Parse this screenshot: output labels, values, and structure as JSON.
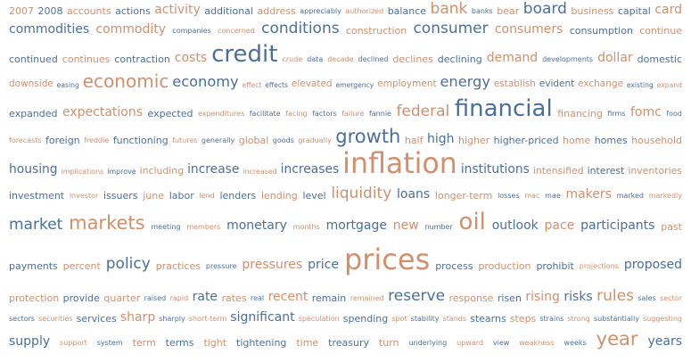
{
  "colors": {
    "blue": "#4a6f9d",
    "orange": "#d18f6c",
    "background": "#ffffff"
  },
  "words": [
    {
      "text": "2007",
      "weight": 2,
      "tone": "orange"
    },
    {
      "text": "2008",
      "weight": 2,
      "tone": "blue"
    },
    {
      "text": "accounts",
      "weight": 2,
      "tone": "orange"
    },
    {
      "text": "actions",
      "weight": 2,
      "tone": "blue"
    },
    {
      "text": "activity",
      "weight": 3,
      "tone": "orange"
    },
    {
      "text": "additional",
      "weight": 2,
      "tone": "blue"
    },
    {
      "text": "address",
      "weight": 2,
      "tone": "orange"
    },
    {
      "text": "appreciably",
      "weight": 1,
      "tone": "blue"
    },
    {
      "text": "authorized",
      "weight": 1,
      "tone": "orange"
    },
    {
      "text": "balance",
      "weight": 2,
      "tone": "blue"
    },
    {
      "text": "bank",
      "weight": 4,
      "tone": "orange"
    },
    {
      "text": "banks",
      "weight": 1,
      "tone": "blue"
    },
    {
      "text": "bear",
      "weight": 2,
      "tone": "orange"
    },
    {
      "text": "board",
      "weight": 4,
      "tone": "blue"
    },
    {
      "text": "business",
      "weight": 2,
      "tone": "orange"
    },
    {
      "text": "capital",
      "weight": 2,
      "tone": "blue"
    },
    {
      "text": "card",
      "weight": 3,
      "tone": "orange"
    },
    {
      "text": "commodities",
      "weight": 3,
      "tone": "blue"
    },
    {
      "text": "commodity",
      "weight": 3,
      "tone": "orange"
    },
    {
      "text": "companies",
      "weight": 1,
      "tone": "blue"
    },
    {
      "text": "concerned",
      "weight": 1,
      "tone": "orange"
    },
    {
      "text": "conditions",
      "weight": 4,
      "tone": "blue"
    },
    {
      "text": "construction",
      "weight": 2,
      "tone": "orange"
    },
    {
      "text": "consumer",
      "weight": 4,
      "tone": "blue"
    },
    {
      "text": "consumers",
      "weight": 3,
      "tone": "orange"
    },
    {
      "text": "consumption",
      "weight": 2,
      "tone": "blue"
    },
    {
      "text": "continue",
      "weight": 2,
      "tone": "orange"
    },
    {
      "text": "continued",
      "weight": 2,
      "tone": "blue"
    },
    {
      "text": "continues",
      "weight": 2,
      "tone": "orange"
    },
    {
      "text": "contraction",
      "weight": 2,
      "tone": "blue"
    },
    {
      "text": "costs",
      "weight": 3,
      "tone": "orange"
    },
    {
      "text": "credit",
      "weight": 6,
      "tone": "blue"
    },
    {
      "text": "crude",
      "weight": 1,
      "tone": "orange"
    },
    {
      "text": "data",
      "weight": 1,
      "tone": "blue"
    },
    {
      "text": "decade",
      "weight": 1,
      "tone": "orange"
    },
    {
      "text": "declined",
      "weight": 1,
      "tone": "blue"
    },
    {
      "text": "declines",
      "weight": 2,
      "tone": "orange"
    },
    {
      "text": "declining",
      "weight": 2,
      "tone": "blue"
    },
    {
      "text": "demand",
      "weight": 3,
      "tone": "orange"
    },
    {
      "text": "developments",
      "weight": 1,
      "tone": "blue"
    },
    {
      "text": "dollar",
      "weight": 3,
      "tone": "orange"
    },
    {
      "text": "domestic",
      "weight": 2,
      "tone": "blue"
    },
    {
      "text": "downside",
      "weight": 2,
      "tone": "orange"
    },
    {
      "text": "easing",
      "weight": 1,
      "tone": "blue"
    },
    {
      "text": "economic",
      "weight": 5,
      "tone": "orange"
    },
    {
      "text": "economy",
      "weight": 4,
      "tone": "blue"
    },
    {
      "text": "effect",
      "weight": 1,
      "tone": "orange"
    },
    {
      "text": "effects",
      "weight": 1,
      "tone": "blue"
    },
    {
      "text": "elevated",
      "weight": 2,
      "tone": "orange"
    },
    {
      "text": "emergency",
      "weight": 1,
      "tone": "blue"
    },
    {
      "text": "employment",
      "weight": 2,
      "tone": "orange"
    },
    {
      "text": "energy",
      "weight": 4,
      "tone": "blue"
    },
    {
      "text": "establish",
      "weight": 2,
      "tone": "orange"
    },
    {
      "text": "evident",
      "weight": 2,
      "tone": "blue"
    },
    {
      "text": "exchange",
      "weight": 2,
      "tone": "orange"
    },
    {
      "text": "existing",
      "weight": 1,
      "tone": "blue"
    },
    {
      "text": "expand",
      "weight": 1,
      "tone": "orange"
    },
    {
      "text": "expanded",
      "weight": 2,
      "tone": "blue"
    },
    {
      "text": "expectations",
      "weight": 3,
      "tone": "orange"
    },
    {
      "text": "expected",
      "weight": 2,
      "tone": "blue"
    },
    {
      "text": "expenditures",
      "weight": 1,
      "tone": "orange"
    },
    {
      "text": "facilitate",
      "weight": 1,
      "tone": "blue"
    },
    {
      "text": "facing",
      "weight": 1,
      "tone": "orange"
    },
    {
      "text": "factors",
      "weight": 1,
      "tone": "blue"
    },
    {
      "text": "failure",
      "weight": 1,
      "tone": "orange"
    },
    {
      "text": "fannie",
      "weight": 1,
      "tone": "blue"
    },
    {
      "text": "federal",
      "weight": 4,
      "tone": "orange"
    },
    {
      "text": "financial",
      "weight": 6,
      "tone": "blue"
    },
    {
      "text": "financing",
      "weight": 2,
      "tone": "orange"
    },
    {
      "text": "firms",
      "weight": 1,
      "tone": "blue"
    },
    {
      "text": "fomc",
      "weight": 3,
      "tone": "orange"
    },
    {
      "text": "food",
      "weight": 1,
      "tone": "blue"
    },
    {
      "text": "forecasts",
      "weight": 1,
      "tone": "orange"
    },
    {
      "text": "foreign",
      "weight": 2,
      "tone": "blue"
    },
    {
      "text": "freddie",
      "weight": 1,
      "tone": "orange"
    },
    {
      "text": "functioning",
      "weight": 2,
      "tone": "blue"
    },
    {
      "text": "futures",
      "weight": 1,
      "tone": "orange"
    },
    {
      "text": "generally",
      "weight": 1,
      "tone": "blue"
    },
    {
      "text": "global",
      "weight": 2,
      "tone": "orange"
    },
    {
      "text": "goods",
      "weight": 1,
      "tone": "blue"
    },
    {
      "text": "gradually",
      "weight": 1,
      "tone": "orange"
    },
    {
      "text": "growth",
      "weight": 5,
      "tone": "blue"
    },
    {
      "text": "half",
      "weight": 2,
      "tone": "orange"
    },
    {
      "text": "high",
      "weight": 3,
      "tone": "blue"
    },
    {
      "text": "higher",
      "weight": 2,
      "tone": "orange"
    },
    {
      "text": "higher-priced",
      "weight": 2,
      "tone": "blue"
    },
    {
      "text": "home",
      "weight": 2,
      "tone": "orange"
    },
    {
      "text": "homes",
      "weight": 2,
      "tone": "blue"
    },
    {
      "text": "household",
      "weight": 2,
      "tone": "orange"
    },
    {
      "text": "housing",
      "weight": 3,
      "tone": "blue"
    },
    {
      "text": "implications",
      "weight": 1,
      "tone": "orange"
    },
    {
      "text": "improve",
      "weight": 1,
      "tone": "blue"
    },
    {
      "text": "including",
      "weight": 2,
      "tone": "orange"
    },
    {
      "text": "increase",
      "weight": 3,
      "tone": "blue"
    },
    {
      "text": "increased",
      "weight": 1,
      "tone": "orange"
    },
    {
      "text": "increases",
      "weight": 3,
      "tone": "blue"
    },
    {
      "text": "inflation",
      "weight": 7,
      "tone": "orange"
    },
    {
      "text": "institutions",
      "weight": 3,
      "tone": "blue"
    },
    {
      "text": "intensified",
      "weight": 2,
      "tone": "orange"
    },
    {
      "text": "interest",
      "weight": 2,
      "tone": "blue"
    },
    {
      "text": "inventories",
      "weight": 2,
      "tone": "orange"
    },
    {
      "text": "investment",
      "weight": 2,
      "tone": "blue"
    },
    {
      "text": "investor",
      "weight": 1,
      "tone": "orange"
    },
    {
      "text": "issuers",
      "weight": 2,
      "tone": "blue"
    },
    {
      "text": "june",
      "weight": 2,
      "tone": "orange"
    },
    {
      "text": "labor",
      "weight": 2,
      "tone": "blue"
    },
    {
      "text": "lend",
      "weight": 1,
      "tone": "orange"
    },
    {
      "text": "lenders",
      "weight": 2,
      "tone": "blue"
    },
    {
      "text": "lending",
      "weight": 2,
      "tone": "orange"
    },
    {
      "text": "level",
      "weight": 2,
      "tone": "blue"
    },
    {
      "text": "liquidity",
      "weight": 4,
      "tone": "orange"
    },
    {
      "text": "loans",
      "weight": 3,
      "tone": "blue"
    },
    {
      "text": "longer-term",
      "weight": 2,
      "tone": "orange"
    },
    {
      "text": "losses",
      "weight": 1,
      "tone": "blue"
    },
    {
      "text": "mac",
      "weight": 1,
      "tone": "orange"
    },
    {
      "text": "mae",
      "weight": 1,
      "tone": "blue"
    },
    {
      "text": "makers",
      "weight": 3,
      "tone": "orange"
    },
    {
      "text": "marked",
      "weight": 1,
      "tone": "blue"
    },
    {
      "text": "markedly",
      "weight": 1,
      "tone": "orange"
    },
    {
      "text": "market",
      "weight": 4,
      "tone": "blue"
    },
    {
      "text": "markets",
      "weight": 5,
      "tone": "orange"
    },
    {
      "text": "meeting",
      "weight": 1,
      "tone": "blue"
    },
    {
      "text": "members",
      "weight": 1,
      "tone": "orange"
    },
    {
      "text": "monetary",
      "weight": 3,
      "tone": "blue"
    },
    {
      "text": "months",
      "weight": 1,
      "tone": "orange"
    },
    {
      "text": "mortgage",
      "weight": 3,
      "tone": "blue"
    },
    {
      "text": "new",
      "weight": 3,
      "tone": "orange"
    },
    {
      "text": "number",
      "weight": 1,
      "tone": "blue"
    },
    {
      "text": "oil",
      "weight": 6,
      "tone": "orange"
    },
    {
      "text": "outlook",
      "weight": 3,
      "tone": "blue"
    },
    {
      "text": "pace",
      "weight": 3,
      "tone": "orange"
    },
    {
      "text": "participants",
      "weight": 3,
      "tone": "blue"
    },
    {
      "text": "past",
      "weight": 2,
      "tone": "orange"
    },
    {
      "text": "payments",
      "weight": 2,
      "tone": "blue"
    },
    {
      "text": "percent",
      "weight": 2,
      "tone": "orange"
    },
    {
      "text": "policy",
      "weight": 4,
      "tone": "blue"
    },
    {
      "text": "practices",
      "weight": 2,
      "tone": "orange"
    },
    {
      "text": "pressure",
      "weight": 1,
      "tone": "blue"
    },
    {
      "text": "pressures",
      "weight": 3,
      "tone": "orange"
    },
    {
      "text": "price",
      "weight": 3,
      "tone": "blue"
    },
    {
      "text": "prices",
      "weight": 7,
      "tone": "orange"
    },
    {
      "text": "process",
      "weight": 2,
      "tone": "blue"
    },
    {
      "text": "production",
      "weight": 2,
      "tone": "orange"
    },
    {
      "text": "prohibit",
      "weight": 2,
      "tone": "blue"
    },
    {
      "text": "projections",
      "weight": 1,
      "tone": "orange"
    },
    {
      "text": "proposed",
      "weight": 3,
      "tone": "blue"
    },
    {
      "text": "protection",
      "weight": 2,
      "tone": "orange"
    },
    {
      "text": "provide",
      "weight": 2,
      "tone": "blue"
    },
    {
      "text": "quarter",
      "weight": 2,
      "tone": "orange"
    },
    {
      "text": "raised",
      "weight": 1,
      "tone": "blue"
    },
    {
      "text": "rapid",
      "weight": 1,
      "tone": "orange"
    },
    {
      "text": "rate",
      "weight": 3,
      "tone": "blue"
    },
    {
      "text": "rates",
      "weight": 2,
      "tone": "orange"
    },
    {
      "text": "real",
      "weight": 1,
      "tone": "blue"
    },
    {
      "text": "recent",
      "weight": 3,
      "tone": "orange"
    },
    {
      "text": "remain",
      "weight": 2,
      "tone": "blue"
    },
    {
      "text": "remained",
      "weight": 1,
      "tone": "orange"
    },
    {
      "text": "reserve",
      "weight": 4,
      "tone": "blue"
    },
    {
      "text": "response",
      "weight": 2,
      "tone": "orange"
    },
    {
      "text": "risen",
      "weight": 2,
      "tone": "blue"
    },
    {
      "text": "rising",
      "weight": 3,
      "tone": "orange"
    },
    {
      "text": "risks",
      "weight": 3,
      "tone": "blue"
    },
    {
      "text": "rules",
      "weight": 4,
      "tone": "orange"
    },
    {
      "text": "sales",
      "weight": 1,
      "tone": "blue"
    },
    {
      "text": "sector",
      "weight": 1,
      "tone": "orange"
    },
    {
      "text": "sectors",
      "weight": 1,
      "tone": "blue"
    },
    {
      "text": "securities",
      "weight": 1,
      "tone": "orange"
    },
    {
      "text": "services",
      "weight": 2,
      "tone": "blue"
    },
    {
      "text": "sharp",
      "weight": 3,
      "tone": "orange"
    },
    {
      "text": "sharply",
      "weight": 1,
      "tone": "blue"
    },
    {
      "text": "short-term",
      "weight": 1,
      "tone": "orange"
    },
    {
      "text": "significant",
      "weight": 3,
      "tone": "blue"
    },
    {
      "text": "speculation",
      "weight": 1,
      "tone": "orange"
    },
    {
      "text": "spending",
      "weight": 2,
      "tone": "blue"
    },
    {
      "text": "spot",
      "weight": 1,
      "tone": "orange"
    },
    {
      "text": "stability",
      "weight": 1,
      "tone": "blue"
    },
    {
      "text": "stands",
      "weight": 1,
      "tone": "orange"
    },
    {
      "text": "stearns",
      "weight": 2,
      "tone": "blue"
    },
    {
      "text": "steps",
      "weight": 2,
      "tone": "orange"
    },
    {
      "text": "strains",
      "weight": 1,
      "tone": "blue"
    },
    {
      "text": "strong",
      "weight": 1,
      "tone": "orange"
    },
    {
      "text": "substantially",
      "weight": 1,
      "tone": "blue"
    },
    {
      "text": "suggesting",
      "weight": 1,
      "tone": "orange"
    },
    {
      "text": "supply",
      "weight": 3,
      "tone": "blue"
    },
    {
      "text": "support",
      "weight": 1,
      "tone": "orange"
    },
    {
      "text": "system",
      "weight": 1,
      "tone": "blue"
    },
    {
      "text": "term",
      "weight": 2,
      "tone": "orange"
    },
    {
      "text": "terms",
      "weight": 2,
      "tone": "blue"
    },
    {
      "text": "tight",
      "weight": 2,
      "tone": "orange"
    },
    {
      "text": "tightening",
      "weight": 2,
      "tone": "blue"
    },
    {
      "text": "time",
      "weight": 2,
      "tone": "orange"
    },
    {
      "text": "treasury",
      "weight": 2,
      "tone": "blue"
    },
    {
      "text": "turn",
      "weight": 2,
      "tone": "orange"
    },
    {
      "text": "underlying",
      "weight": 1,
      "tone": "blue"
    },
    {
      "text": "upward",
      "weight": 1,
      "tone": "orange"
    },
    {
      "text": "view",
      "weight": 1,
      "tone": "blue"
    },
    {
      "text": "weakness",
      "weight": 1,
      "tone": "orange"
    },
    {
      "text": "weeks",
      "weight": 1,
      "tone": "blue"
    },
    {
      "text": "year",
      "weight": 5,
      "tone": "orange"
    },
    {
      "text": "years",
      "weight": 3,
      "tone": "blue"
    }
  ]
}
